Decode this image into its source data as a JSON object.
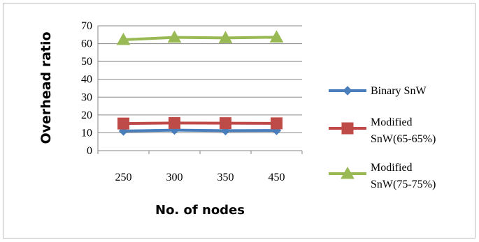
{
  "chart_data": {
    "type": "line",
    "title": "",
    "xlabel": "No. of nodes",
    "ylabel": "Overhead ratio",
    "categories": [
      "250",
      "300",
      "350",
      "450"
    ],
    "ylim": [
      0,
      70
    ],
    "yticks": [
      0,
      10,
      20,
      30,
      40,
      50,
      60,
      70
    ],
    "grid": "horizontal",
    "legend_position": "right",
    "series": [
      {
        "name": "Binary SnW",
        "legend_lines": [
          "Binary SnW"
        ],
        "values": [
          11,
          11.5,
          11.2,
          11.3
        ],
        "color": "#4a7ebb",
        "marker": "diamond"
      },
      {
        "name": "Modified SnW(65-65%)",
        "legend_lines": [
          "Modified",
          "SnW(65-65%)"
        ],
        "values": [
          15.2,
          15.5,
          15.4,
          15.3
        ],
        "color": "#be4b48",
        "marker": "square"
      },
      {
        "name": "Modified SnW(75-75%)",
        "legend_lines": [
          "Modified",
          "SnW(75-75%)"
        ],
        "values": [
          62.2,
          63.5,
          63.2,
          63.6
        ],
        "color": "#98b954",
        "marker": "triangle"
      }
    ]
  }
}
